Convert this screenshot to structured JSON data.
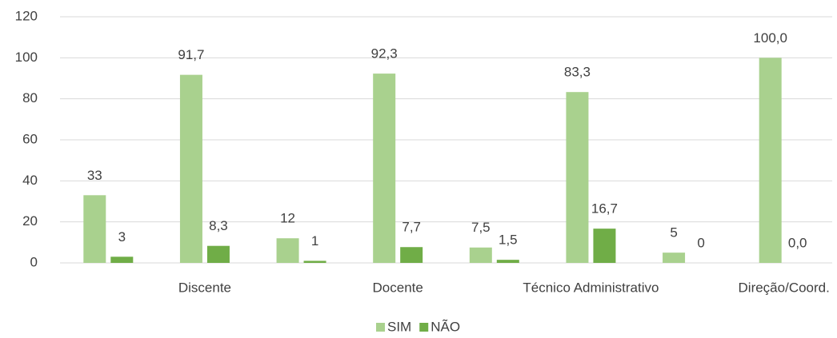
{
  "chart_data": {
    "type": "bar",
    "categories": [
      null,
      "Discente",
      null,
      "Docente",
      null,
      "Técnico Administrativo",
      null,
      "Direção/Coord."
    ],
    "series": [
      {
        "name": "SIM",
        "color": "#a9d18e",
        "values": [
          33,
          91.7,
          12,
          92.3,
          7.5,
          83.3,
          5,
          100.0
        ],
        "value_labels": [
          "33",
          "91,7",
          "12",
          "92,3",
          "7,5",
          "83,3",
          "5",
          "100,0"
        ]
      },
      {
        "name": "NÃO",
        "color": "#70ad47",
        "values": [
          3,
          8.3,
          1,
          7.7,
          1.5,
          16.7,
          0,
          0.0
        ],
        "value_labels": [
          "3",
          "8,3",
          "1",
          "7,7",
          "1,5",
          "16,7",
          "0",
          "0,0"
        ]
      }
    ],
    "ylim": [
      0,
      120
    ],
    "yticks": [
      0,
      20,
      40,
      60,
      80,
      100,
      120
    ],
    "grid": true,
    "legend": "bottom"
  }
}
